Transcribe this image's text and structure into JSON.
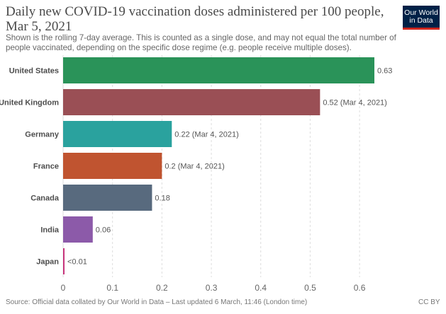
{
  "header": {
    "title": "Daily new COVID-19 vaccination doses administered per 100 people, Mar 5, 2021",
    "subtitle": "Shown is the rolling 7-day average. This is counted as a single dose, and may not equal the total number of people vaccinated, depending on the specific dose regime (e.g. people receive multiple doses).",
    "logo_line1": "Our World",
    "logo_line2": "in Data"
  },
  "colors": {
    "logo_bg": "#002147",
    "logo_accent": "#ce261e",
    "grid": "#dddddd"
  },
  "chart_data": {
    "type": "bar",
    "orientation": "horizontal",
    "title": "Daily new COVID-19 vaccination doses administered per 100 people, Mar 5, 2021",
    "categories": [
      "United States",
      "United Kingdom",
      "Germany",
      "France",
      "Canada",
      "India",
      "Japan"
    ],
    "values": [
      0.63,
      0.52,
      0.22,
      0.2,
      0.18,
      0.06,
      0.002
    ],
    "labels": [
      "0.63",
      "0.52 (Mar 4, 2021)",
      "0.22 (Mar 4, 2021)",
      "0.2 (Mar 4, 2021)",
      "0.18",
      "0.06",
      "<0.01"
    ],
    "colors": [
      "#2a9359",
      "#9a4f55",
      "#2aa29e",
      "#c05430",
      "#586a7e",
      "#8c5aa9",
      "#c8357c"
    ],
    "xlim": [
      0,
      0.63
    ],
    "xticks": [
      0,
      0.1,
      0.2,
      0.3,
      0.4,
      0.5,
      0.6
    ],
    "xtick_labels": [
      "0",
      "0.1",
      "0.2",
      "0.3",
      "0.4",
      "0.5",
      "0.6"
    ],
    "xlabel": "",
    "ylabel": "",
    "grid": true
  },
  "footer": {
    "source": "Source: Official data collated by Our World in Data – Last updated 6 March, 11:46 (London time)",
    "license": "CC BY"
  }
}
